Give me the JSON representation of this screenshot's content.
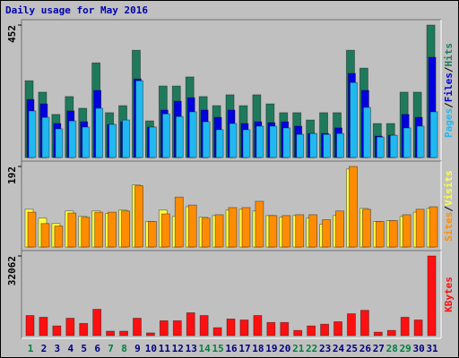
{
  "chart_data": [
    {
      "type": "bar",
      "title": "Daily usage for May 2016",
      "legend_separator": "/",
      "ylim": [
        0,
        452
      ],
      "yticks": [
        452
      ],
      "series": [
        {
          "name": "Hits",
          "color": "#1f7a5c",
          "values": [
            262,
            223,
            147,
            208,
            168,
            323,
            153,
            177,
            366,
            125,
            244,
            244,
            275,
            208,
            177,
            214,
            177,
            214,
            183,
            153,
            153,
            128,
            153,
            153,
            366,
            305,
            116,
            116,
            223,
            223,
            452
          ]
        },
        {
          "name": "Files",
          "color": "#0000e0",
          "values": [
            198,
            183,
            116,
            159,
            122,
            229,
            113,
            122,
            268,
            104,
            162,
            192,
            204,
            162,
            137,
            162,
            116,
            122,
            119,
            122,
            107,
            82,
            82,
            101,
            287,
            229,
            73,
            76,
            147,
            137,
            342
          ]
        },
        {
          "name": "Pages",
          "color": "#20b8f0",
          "values": [
            159,
            137,
            98,
            125,
            104,
            168,
            113,
            128,
            262,
            104,
            149,
            140,
            156,
            122,
            95,
            116,
            95,
            107,
            107,
            101,
            79,
            82,
            79,
            82,
            256,
            171,
            70,
            76,
            101,
            107,
            156
          ]
        }
      ]
    },
    {
      "type": "bar",
      "ylim": [
        0,
        192
      ],
      "yticks": [
        192
      ],
      "series": [
        {
          "name": "Visits",
          "color": "#ffff40",
          "values": [
            90,
            69,
            56,
            86,
            73,
            86,
            80,
            88,
            148,
            61,
            88,
            73,
            96,
            71,
            75,
            88,
            90,
            86,
            75,
            71,
            75,
            69,
            54,
            75,
            186,
            92,
            61,
            63,
            73,
            83,
            92
          ]
        },
        {
          "name": "Sites",
          "color": "#ff8c00",
          "values": [
            83,
            56,
            50,
            81,
            71,
            83,
            83,
            86,
            146,
            61,
            79,
            119,
            100,
            69,
            77,
            94,
            94,
            109,
            75,
            75,
            77,
            77,
            65,
            86,
            192,
            90,
            61,
            63,
            77,
            90,
            96
          ]
        }
      ]
    },
    {
      "type": "bar",
      "ylim": [
        0,
        32062
      ],
      "yticks": [
        32062
      ],
      "categories": [
        "1",
        "2",
        "3",
        "4",
        "5",
        "6",
        "7",
        "8",
        "9",
        "10",
        "11",
        "12",
        "13",
        "14",
        "15",
        "16",
        "17",
        "18",
        "19",
        "20",
        "21",
        "22",
        "23",
        "24",
        "25",
        "26",
        "27",
        "28",
        "29",
        "30",
        "31"
      ],
      "category_colors": [
        "#008040",
        "#000080",
        "#000080",
        "#000080",
        "#000080",
        "#000080",
        "#008040",
        "#008040",
        "#000080",
        "#000080",
        "#000080",
        "#000080",
        "#000080",
        "#008040",
        "#008040",
        "#000080",
        "#000080",
        "#000080",
        "#000080",
        "#000080",
        "#008040",
        "#008040",
        "#000080",
        "#000080",
        "#000080",
        "#000080",
        "#000080",
        "#008040",
        "#008040",
        "#000080",
        "#000080"
      ],
      "series": [
        {
          "name": "KBytes",
          "color": "#ff1010",
          "values": [
            8100,
            7400,
            3900,
            7000,
            4900,
            10600,
            1800,
            1800,
            7000,
            1100,
            6000,
            6000,
            9200,
            8100,
            3200,
            6700,
            6300,
            8100,
            5300,
            5300,
            2100,
            3900,
            4600,
            5600,
            8800,
            10200,
            1400,
            2100,
            7400,
            6300,
            32062
          ]
        }
      ]
    }
  ]
}
